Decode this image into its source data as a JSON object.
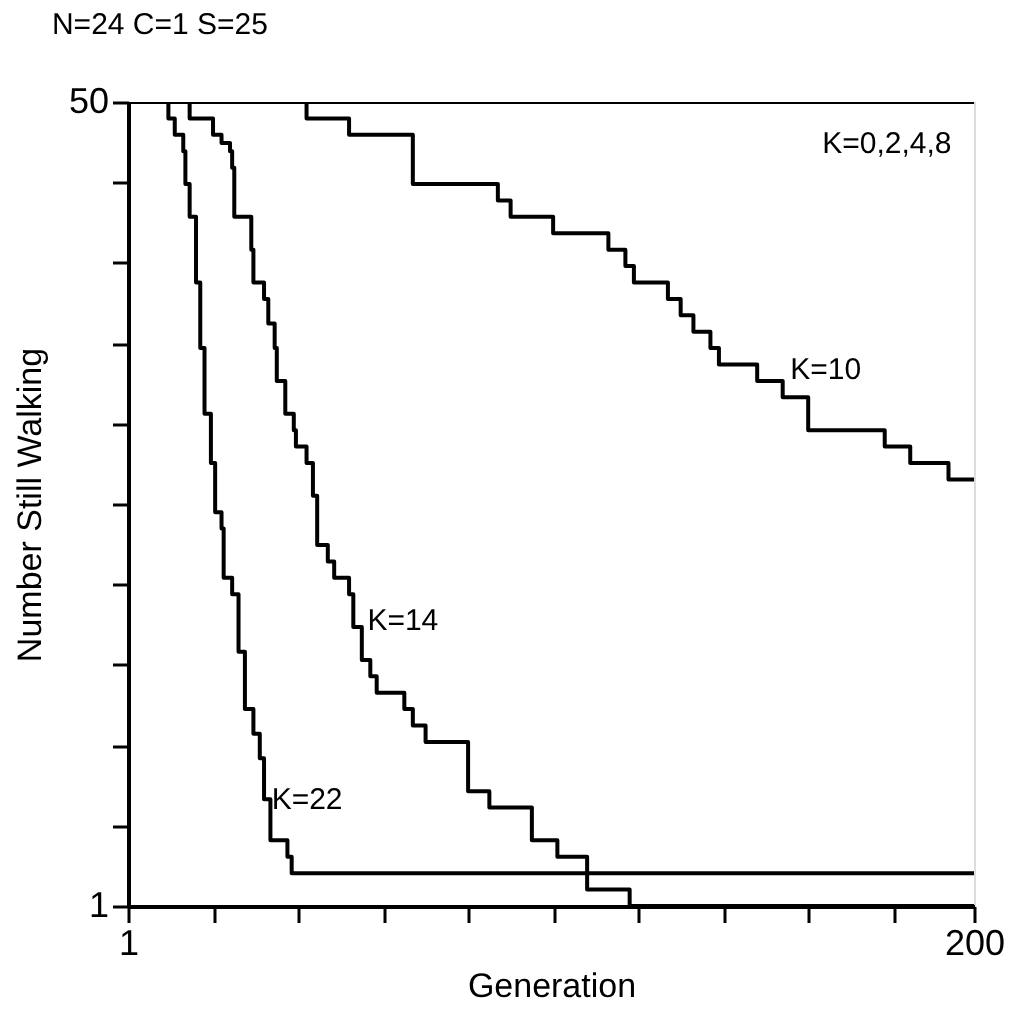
{
  "chart_data": {
    "type": "step",
    "title": "N=24  C=1  S=25",
    "xlabel": "Generation",
    "ylabel": "Number Still Walking",
    "xlim": [
      1,
      200
    ],
    "xticks": [
      1,
      {
        "value": 21,
        "label": null
      },
      {
        "value": 41,
        "label": null
      },
      {
        "value": 61,
        "label": null
      },
      {
        "value": 81,
        "label": null
      },
      {
        "value": 101,
        "label": null
      },
      {
        "value": 121,
        "label": null
      },
      {
        "value": 141,
        "label": null
      },
      {
        "value": 161,
        "label": null
      },
      {
        "value": 181,
        "label": null
      },
      200
    ],
    "ylim": [
      1,
      50
    ],
    "yticks": [
      1,
      {
        "value": 5.9,
        "label": null
      },
      {
        "value": 10.8,
        "label": null
      },
      {
        "value": 15.7,
        "label": null
      },
      {
        "value": 20.6,
        "label": null
      },
      {
        "value": 25.5,
        "label": null
      },
      {
        "value": 30.4,
        "label": null
      },
      {
        "value": 35.3,
        "label": null
      },
      {
        "value": 40.2,
        "label": null
      },
      {
        "value": 45.1,
        "label": null
      },
      50
    ],
    "grid": false,
    "marker": "none",
    "line_style": "solid",
    "series": [
      {
        "color": "#000000",
        "x": [
          1,
          200
        ],
        "values": [
          50,
          50
        ]
      },
      {
        "color": "#000000",
        "x": [
          1,
          43,
          53,
          68,
          88,
          91,
          101,
          114,
          118,
          120,
          128,
          131,
          134,
          138,
          140,
          149,
          155,
          161,
          179,
          185,
          194,
          200
        ],
        "values": [
          50,
          49,
          48,
          45,
          44,
          43,
          42,
          41,
          40,
          39,
          38,
          37,
          36,
          35,
          34,
          33,
          32,
          30,
          29,
          28,
          27,
          27
        ]
      },
      {
        "color": "#000000",
        "x": [
          1,
          15.5,
          21,
          23,
          25,
          25.5,
          26,
          30,
          30.5,
          33,
          34,
          35.5,
          36,
          38,
          40,
          40.5,
          43,
          44.5,
          45.5,
          48,
          49.5,
          53,
          54,
          56,
          58,
          59.5,
          66,
          68,
          71,
          81,
          86,
          96,
          102,
          109,
          119,
          200
        ],
        "values": [
          50,
          49,
          48,
          47.5,
          47,
          46,
          43,
          41,
          39,
          38,
          36.5,
          35,
          33,
          31,
          30,
          29,
          28,
          26,
          23,
          22,
          21,
          20,
          18,
          16,
          15,
          14,
          13,
          12,
          11,
          8,
          7,
          5,
          4,
          2,
          1,
          1
        ]
      },
      {
        "color": "#000000",
        "x": [
          1,
          10.5,
          12,
          14,
          14.5,
          15.5,
          17,
          18,
          19,
          20.5,
          21.5,
          23,
          23.5,
          25.5,
          27,
          28.5,
          30.5,
          32,
          33,
          34.5,
          38.5,
          39.5,
          200
        ],
        "values": [
          50,
          49,
          48,
          47,
          45,
          43,
          39,
          35,
          31,
          28,
          25,
          24,
          21,
          20,
          16.5,
          13,
          11.5,
          10,
          7.5,
          5,
          4,
          3,
          3
        ]
      }
    ],
    "annotations": [
      "K=0,2,4,8",
      "K=10",
      "K=14",
      "K=22"
    ]
  }
}
